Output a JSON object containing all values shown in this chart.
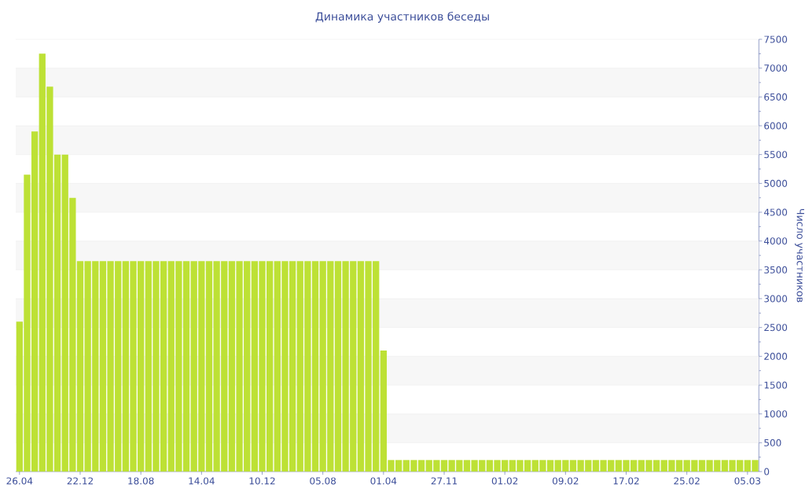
{
  "chart_data": {
    "type": "bar",
    "title": "Динамика участников беседы",
    "ylabel": "Число участников",
    "categories": [
      "26.04",
      null,
      null,
      null,
      null,
      null,
      null,
      null,
      "22.12",
      null,
      null,
      null,
      null,
      null,
      null,
      null,
      "18.08",
      null,
      null,
      null,
      null,
      null,
      null,
      null,
      "14.04",
      null,
      null,
      null,
      null,
      null,
      null,
      null,
      "10.12",
      null,
      null,
      null,
      null,
      null,
      null,
      null,
      "05.08",
      null,
      null,
      null,
      null,
      null,
      null,
      null,
      "01.04",
      null,
      null,
      null,
      null,
      null,
      null,
      null,
      "27.11",
      null,
      null,
      null,
      null,
      null,
      null,
      null,
      "01.02",
      null,
      null,
      null,
      null,
      null,
      null,
      null,
      "09.02",
      null,
      null,
      null,
      null,
      null,
      null,
      null,
      "17.02",
      null,
      null,
      null,
      null,
      null,
      null,
      null,
      "25.02",
      null,
      null,
      null,
      null,
      null,
      null,
      null,
      "05.03",
      null
    ],
    "values": [
      2600,
      5150,
      5900,
      7250,
      6680,
      5500,
      5500,
      4750,
      3650,
      3650,
      3650,
      3650,
      3650,
      3650,
      3650,
      3650,
      3650,
      3650,
      3650,
      3650,
      3650,
      3650,
      3650,
      3650,
      3650,
      3650,
      3650,
      3650,
      3650,
      3650,
      3650,
      3650,
      3650,
      3650,
      3650,
      3650,
      3650,
      3650,
      3650,
      3650,
      3650,
      3650,
      3650,
      3650,
      3650,
      3650,
      3650,
      3650,
      2100,
      200,
      200,
      200,
      200,
      200,
      200,
      200,
      200,
      200,
      200,
      200,
      200,
      200,
      200,
      200,
      200,
      200,
      200,
      200,
      200,
      200,
      200,
      200,
      200,
      200,
      200,
      200,
      200,
      200,
      200,
      200,
      200,
      200,
      200,
      200,
      200,
      200,
      200,
      200,
      200,
      200,
      200,
      200,
      200,
      200,
      200,
      200,
      200,
      200
    ],
    "color": "#bde135",
    "ylim": [
      0,
      7500
    ],
    "yticks": [
      0,
      500,
      1000,
      1500,
      2000,
      2500,
      3000,
      3500,
      4000,
      4500,
      5000,
      5500,
      6000,
      6500,
      7000,
      7500
    ],
    "grid": "y"
  }
}
